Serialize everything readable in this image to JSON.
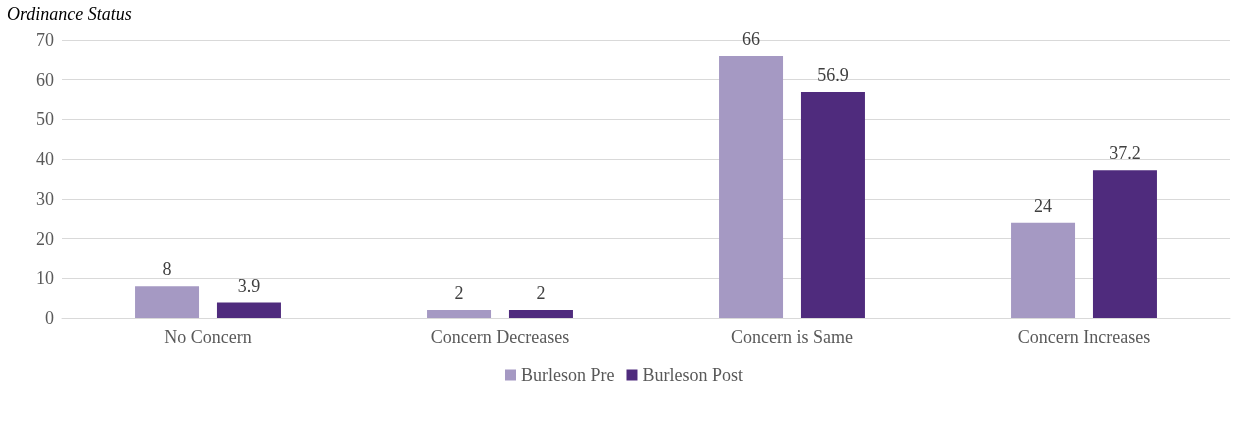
{
  "chart_data": {
    "type": "bar",
    "title": "Ordinance Status",
    "categories": [
      "No Concern",
      "Concern Decreases",
      "Concern is Same",
      "Concern Increases"
    ],
    "series": [
      {
        "name": "Burleson Pre",
        "color": "#a599c3",
        "values": [
          8,
          2,
          66,
          24
        ]
      },
      {
        "name": "Burleson Post",
        "color": "#4f2b7d",
        "values": [
          3.9,
          2,
          56.9,
          37.2
        ]
      }
    ],
    "ylim": [
      0,
      70
    ],
    "yticks": [
      0,
      10,
      20,
      30,
      40,
      50,
      60,
      70
    ],
    "grid": "y",
    "legend": "bottom",
    "data_labels": true
  }
}
